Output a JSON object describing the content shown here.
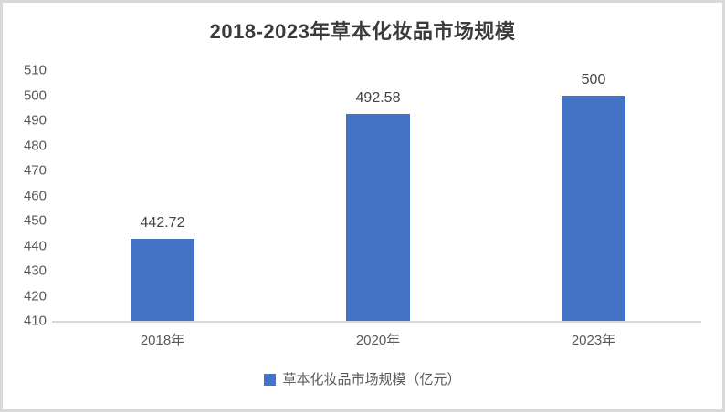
{
  "chart_data": {
    "type": "bar",
    "title": "2018-2023年草本化妆品市场规模",
    "categories": [
      "2018年",
      "2020年",
      "2023年"
    ],
    "values": [
      442.72,
      492.58,
      500
    ],
    "value_labels": [
      "442.72",
      "492.58",
      "500"
    ],
    "legend_entries": [
      "草本化妆品市场规模（亿元）"
    ],
    "legend_position": "bottom",
    "xlabel": "",
    "ylabel": "",
    "ylim": [
      410,
      510
    ],
    "ytick_step": 10,
    "ytick_labels": [
      "410",
      "420",
      "430",
      "440",
      "450",
      "460",
      "470",
      "480",
      "490",
      "500",
      "510"
    ],
    "grid": false
  },
  "colors": {
    "bar": "#4472C4",
    "title_text": "#3a3a3a",
    "axis_text": "#595959",
    "data_label_text": "#444444",
    "baseline": "#d9d9d9",
    "frame_border": "#d9d9d9",
    "background": "#ffffff"
  }
}
